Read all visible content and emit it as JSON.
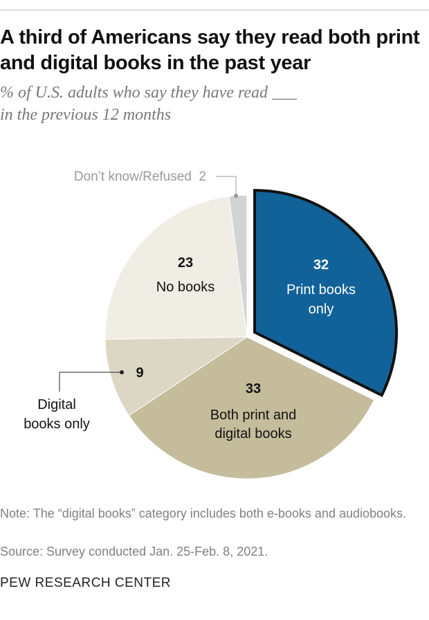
{
  "title": "A third of Americans say they read both print and digital books in the past year",
  "subtitle_line1": "% of U.S. adults who say they have read ___",
  "subtitle_line2": "in the previous 12 months",
  "chart_data": {
    "type": "pie",
    "start": "top, clockwise",
    "slices": [
      {
        "label": "Print books only",
        "value": 32,
        "color": "#12629a",
        "exploded": true
      },
      {
        "label": "Both print and digital books",
        "value": 33,
        "color": "#c4bc9b"
      },
      {
        "label": "Digital books only",
        "value": 9,
        "color": "#dcd7c4"
      },
      {
        "label": "No books",
        "value": 23,
        "color": "#efede4"
      },
      {
        "label": "Don’t know/Refused",
        "value": 2,
        "color": "#d2d3d5"
      }
    ]
  },
  "labels": {
    "print_value": "32",
    "print_l1": "Print books",
    "print_l2": "only",
    "both_value": "33",
    "both_l1": "Both print and",
    "both_l2": "digital books",
    "digital_value": "9",
    "digital_l1": "Digital",
    "digital_l2": "books only",
    "none_value": "23",
    "none_l1": "No books",
    "dk_label": "Don’t know/Refused  2"
  },
  "note": "Note: The “digital books” category includes both e-books and audiobooks.",
  "source": "Source: Survey conducted Jan. 25-Feb. 8, 2021.",
  "brand": "PEW RESEARCH CENTER"
}
